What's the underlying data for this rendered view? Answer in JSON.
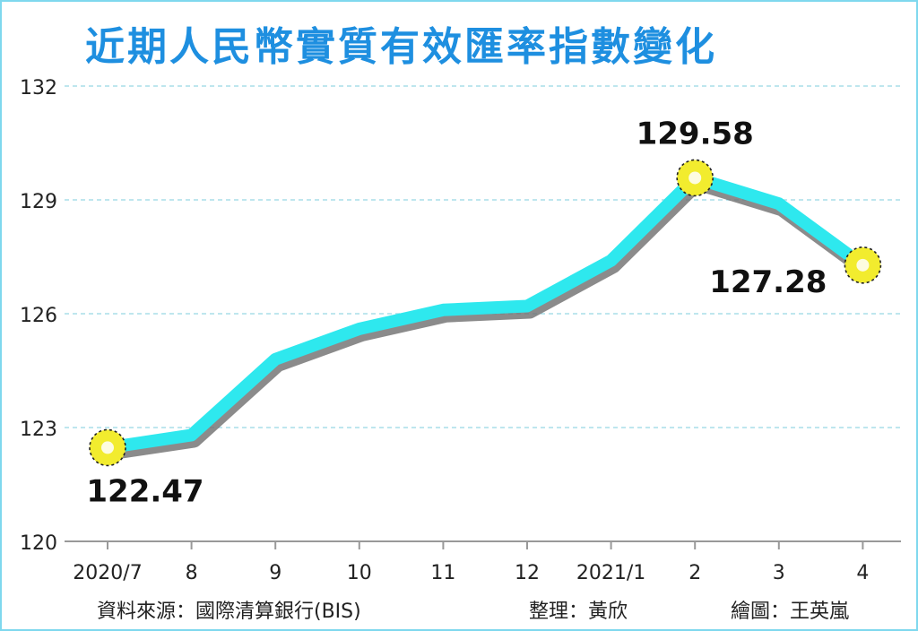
{
  "chart_data": {
    "type": "line",
    "title": "近期人民幣實質有效匯率指數變化",
    "categories": [
      "2020/7",
      "8",
      "9",
      "10",
      "11",
      "12",
      "2021/1",
      "2",
      "3",
      "4"
    ],
    "series": [
      {
        "values": [
          122.47,
          122.8,
          124.8,
          125.6,
          126.1,
          126.2,
          127.4,
          129.58,
          128.9,
          127.28
        ]
      }
    ],
    "data_labels": [
      {
        "index": 0,
        "text": "122.47"
      },
      {
        "index": 7,
        "text": "129.58"
      },
      {
        "index": 9,
        "text": "127.28"
      }
    ],
    "yticks": [
      "132",
      "129",
      "126",
      "123",
      "120"
    ],
    "ylim": [
      120,
      132
    ],
    "xlabel": "",
    "ylabel": "",
    "grid": true,
    "colors": {
      "line": "#2ee8ee",
      "title": "#1e8fe0",
      "marker": "#f2ec2e",
      "grid": "#a9dde9"
    }
  },
  "footer": {
    "source": "資料來源：國際清算銀行(BIS)",
    "editor": "整理：黃欣",
    "artist": "繪圖：王英嵐"
  }
}
